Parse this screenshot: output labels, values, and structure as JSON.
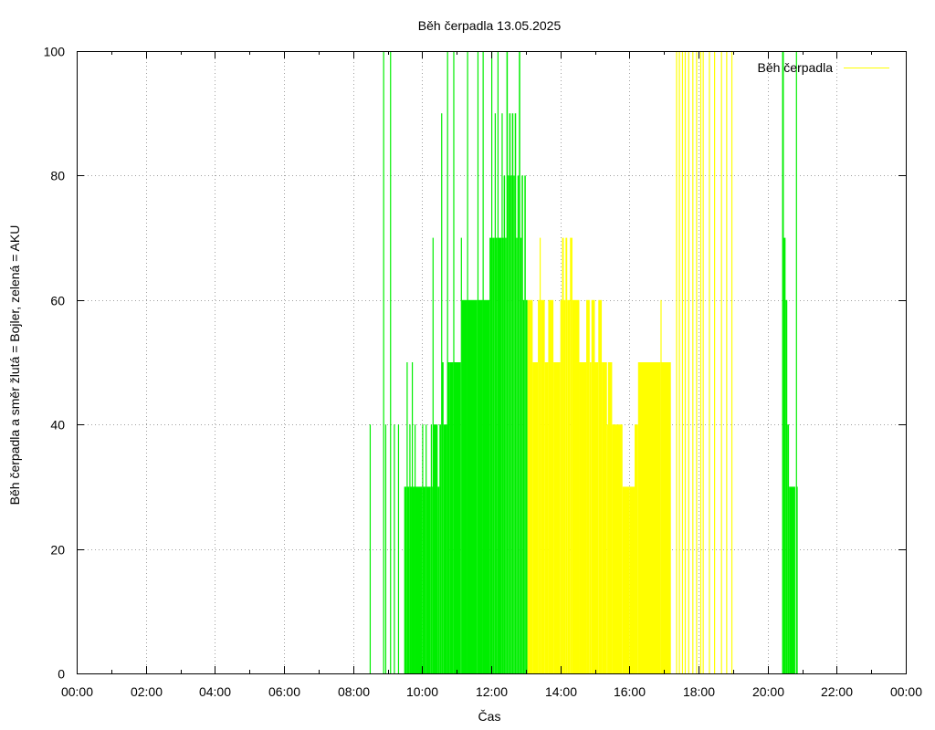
{
  "chart_data": {
    "type": "bar",
    "title": "Běh čerpadla 13.05.2025",
    "xlabel": "Čas",
    "ylabel": "Běh čerpadla a směr žlutá = Bojler, zelená = AKU",
    "xlim": [
      0,
      24
    ],
    "ylim": [
      0,
      100
    ],
    "x_tick_labels": [
      "00:00",
      "02:00",
      "04:00",
      "06:00",
      "08:00",
      "10:00",
      "12:00",
      "14:00",
      "16:00",
      "18:00",
      "20:00",
      "22:00",
      "00:00"
    ],
    "y_tick_labels": [
      "0",
      "20",
      "40",
      "60",
      "80",
      "100"
    ],
    "grid": true,
    "legend": {
      "position": "top-right",
      "entries": [
        {
          "label": "Běh čerpadla",
          "color": "#ffff00"
        }
      ]
    },
    "x_unit": "hours",
    "series": [
      {
        "color": "#00ee00",
        "meaning": "zelená = AKU",
        "segments": [
          [
            8.48,
            8.5,
            40
          ],
          [
            8.87,
            8.89,
            100
          ],
          [
            8.93,
            8.95,
            40
          ],
          [
            9.07,
            9.09,
            100
          ],
          [
            9.18,
            9.2,
            40
          ],
          [
            9.3,
            9.32,
            40
          ],
          [
            9.48,
            9.55,
            30
          ],
          [
            9.55,
            9.57,
            50
          ],
          [
            9.57,
            9.63,
            30
          ],
          [
            9.63,
            9.65,
            40
          ],
          [
            9.65,
            9.7,
            30
          ],
          [
            9.7,
            9.72,
            50
          ],
          [
            9.72,
            9.78,
            30
          ],
          [
            9.78,
            9.8,
            40
          ],
          [
            9.8,
            10.0,
            30
          ],
          [
            10.0,
            10.02,
            40
          ],
          [
            10.02,
            10.1,
            30
          ],
          [
            10.1,
            10.12,
            40
          ],
          [
            10.12,
            10.25,
            30
          ],
          [
            10.25,
            10.27,
            40
          ],
          [
            10.27,
            10.3,
            30
          ],
          [
            10.3,
            10.32,
            70
          ],
          [
            10.32,
            10.45,
            40
          ],
          [
            10.45,
            10.5,
            30
          ],
          [
            10.5,
            10.55,
            40
          ],
          [
            10.55,
            10.57,
            90
          ],
          [
            10.57,
            10.62,
            50
          ],
          [
            10.62,
            10.72,
            40
          ],
          [
            10.72,
            10.74,
            100
          ],
          [
            10.74,
            10.8,
            50
          ],
          [
            10.8,
            10.9,
            50
          ],
          [
            10.9,
            10.92,
            100
          ],
          [
            10.92,
            11.12,
            50
          ],
          [
            11.12,
            11.15,
            70
          ],
          [
            11.15,
            11.3,
            60
          ],
          [
            11.3,
            11.32,
            100
          ],
          [
            11.32,
            11.6,
            60
          ],
          [
            11.6,
            11.62,
            100
          ],
          [
            11.62,
            11.75,
            60
          ],
          [
            11.75,
            11.77,
            100
          ],
          [
            11.77,
            11.95,
            60
          ],
          [
            11.95,
            12.0,
            70
          ],
          [
            12.0,
            12.03,
            100
          ],
          [
            12.03,
            12.1,
            70
          ],
          [
            12.1,
            12.13,
            90
          ],
          [
            12.13,
            12.18,
            70
          ],
          [
            12.18,
            12.21,
            100
          ],
          [
            12.21,
            12.3,
            70
          ],
          [
            12.3,
            12.33,
            90
          ],
          [
            12.33,
            12.36,
            70
          ],
          [
            12.36,
            12.4,
            80
          ],
          [
            12.4,
            12.44,
            70
          ],
          [
            12.44,
            12.48,
            100
          ],
          [
            12.48,
            12.52,
            80
          ],
          [
            12.52,
            12.56,
            90
          ],
          [
            12.56,
            12.6,
            80
          ],
          [
            12.6,
            12.64,
            90
          ],
          [
            12.64,
            12.68,
            80
          ],
          [
            12.68,
            12.72,
            90
          ],
          [
            12.72,
            12.76,
            70
          ],
          [
            12.76,
            12.8,
            80
          ],
          [
            12.8,
            12.84,
            100
          ],
          [
            12.84,
            12.88,
            70
          ],
          [
            12.88,
            12.92,
            80
          ],
          [
            12.92,
            12.96,
            60
          ],
          [
            12.96,
            13.0,
            80
          ],
          [
            13.0,
            13.05,
            60
          ],
          [
            20.42,
            20.47,
            100
          ],
          [
            20.47,
            20.52,
            70
          ],
          [
            20.52,
            20.57,
            60
          ],
          [
            20.57,
            20.62,
            40
          ],
          [
            20.62,
            20.8,
            30
          ],
          [
            20.82,
            20.84,
            100
          ],
          [
            20.84,
            20.86,
            30
          ]
        ]
      },
      {
        "color": "#ffff00",
        "meaning": "žlutá = Bojler",
        "segments": [
          [
            13.05,
            13.2,
            60
          ],
          [
            13.2,
            13.35,
            50
          ],
          [
            13.35,
            13.4,
            60
          ],
          [
            13.4,
            13.43,
            70
          ],
          [
            13.43,
            13.55,
            60
          ],
          [
            13.55,
            13.65,
            50
          ],
          [
            13.65,
            13.8,
            60
          ],
          [
            13.8,
            14.0,
            50
          ],
          [
            14.0,
            14.05,
            60
          ],
          [
            14.05,
            14.1,
            70
          ],
          [
            14.1,
            14.15,
            60
          ],
          [
            14.15,
            14.2,
            70
          ],
          [
            14.2,
            14.28,
            60
          ],
          [
            14.28,
            14.35,
            70
          ],
          [
            14.35,
            14.55,
            60
          ],
          [
            14.55,
            14.75,
            50
          ],
          [
            14.75,
            14.85,
            60
          ],
          [
            14.85,
            14.9,
            50
          ],
          [
            14.9,
            15.0,
            60
          ],
          [
            15.0,
            15.1,
            50
          ],
          [
            15.1,
            15.2,
            60
          ],
          [
            15.2,
            15.35,
            50
          ],
          [
            15.35,
            15.38,
            40
          ],
          [
            15.38,
            15.5,
            50
          ],
          [
            15.5,
            15.8,
            40
          ],
          [
            15.8,
            16.0,
            30
          ],
          [
            16.0,
            16.15,
            30
          ],
          [
            16.15,
            16.25,
            40
          ],
          [
            16.25,
            16.9,
            50
          ],
          [
            16.9,
            16.92,
            60
          ],
          [
            16.92,
            17.2,
            50
          ],
          [
            17.35,
            17.37,
            100
          ],
          [
            17.43,
            17.45,
            100
          ],
          [
            17.52,
            17.54,
            100
          ],
          [
            17.6,
            17.62,
            100
          ],
          [
            17.7,
            17.72,
            100
          ],
          [
            17.82,
            17.84,
            100
          ],
          [
            17.93,
            17.95,
            100
          ],
          [
            18.05,
            18.07,
            100
          ],
          [
            18.12,
            18.14,
            100
          ],
          [
            18.3,
            18.32,
            100
          ],
          [
            18.45,
            18.47,
            100
          ],
          [
            18.65,
            18.67,
            100
          ],
          [
            18.8,
            18.82,
            100
          ],
          [
            18.95,
            18.97,
            100
          ]
        ]
      }
    ]
  }
}
